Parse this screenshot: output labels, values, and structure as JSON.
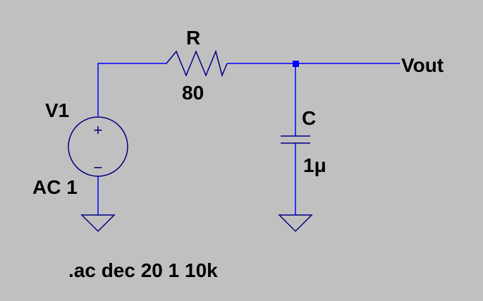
{
  "schematic": {
    "source": {
      "name": "V1",
      "value": "AC 1",
      "plus_sign": "+",
      "minus_sign": "−"
    },
    "resistor": {
      "name": "R",
      "value": "80"
    },
    "capacitor": {
      "name": "C",
      "value": "1μ"
    },
    "output_label": "Vout",
    "directive": ".ac dec 20 1 10k"
  },
  "colors": {
    "background": "#c0c0c0",
    "wire": "#0000ff",
    "component": "#000080",
    "junction": "#0000ff",
    "text": "#000000"
  }
}
